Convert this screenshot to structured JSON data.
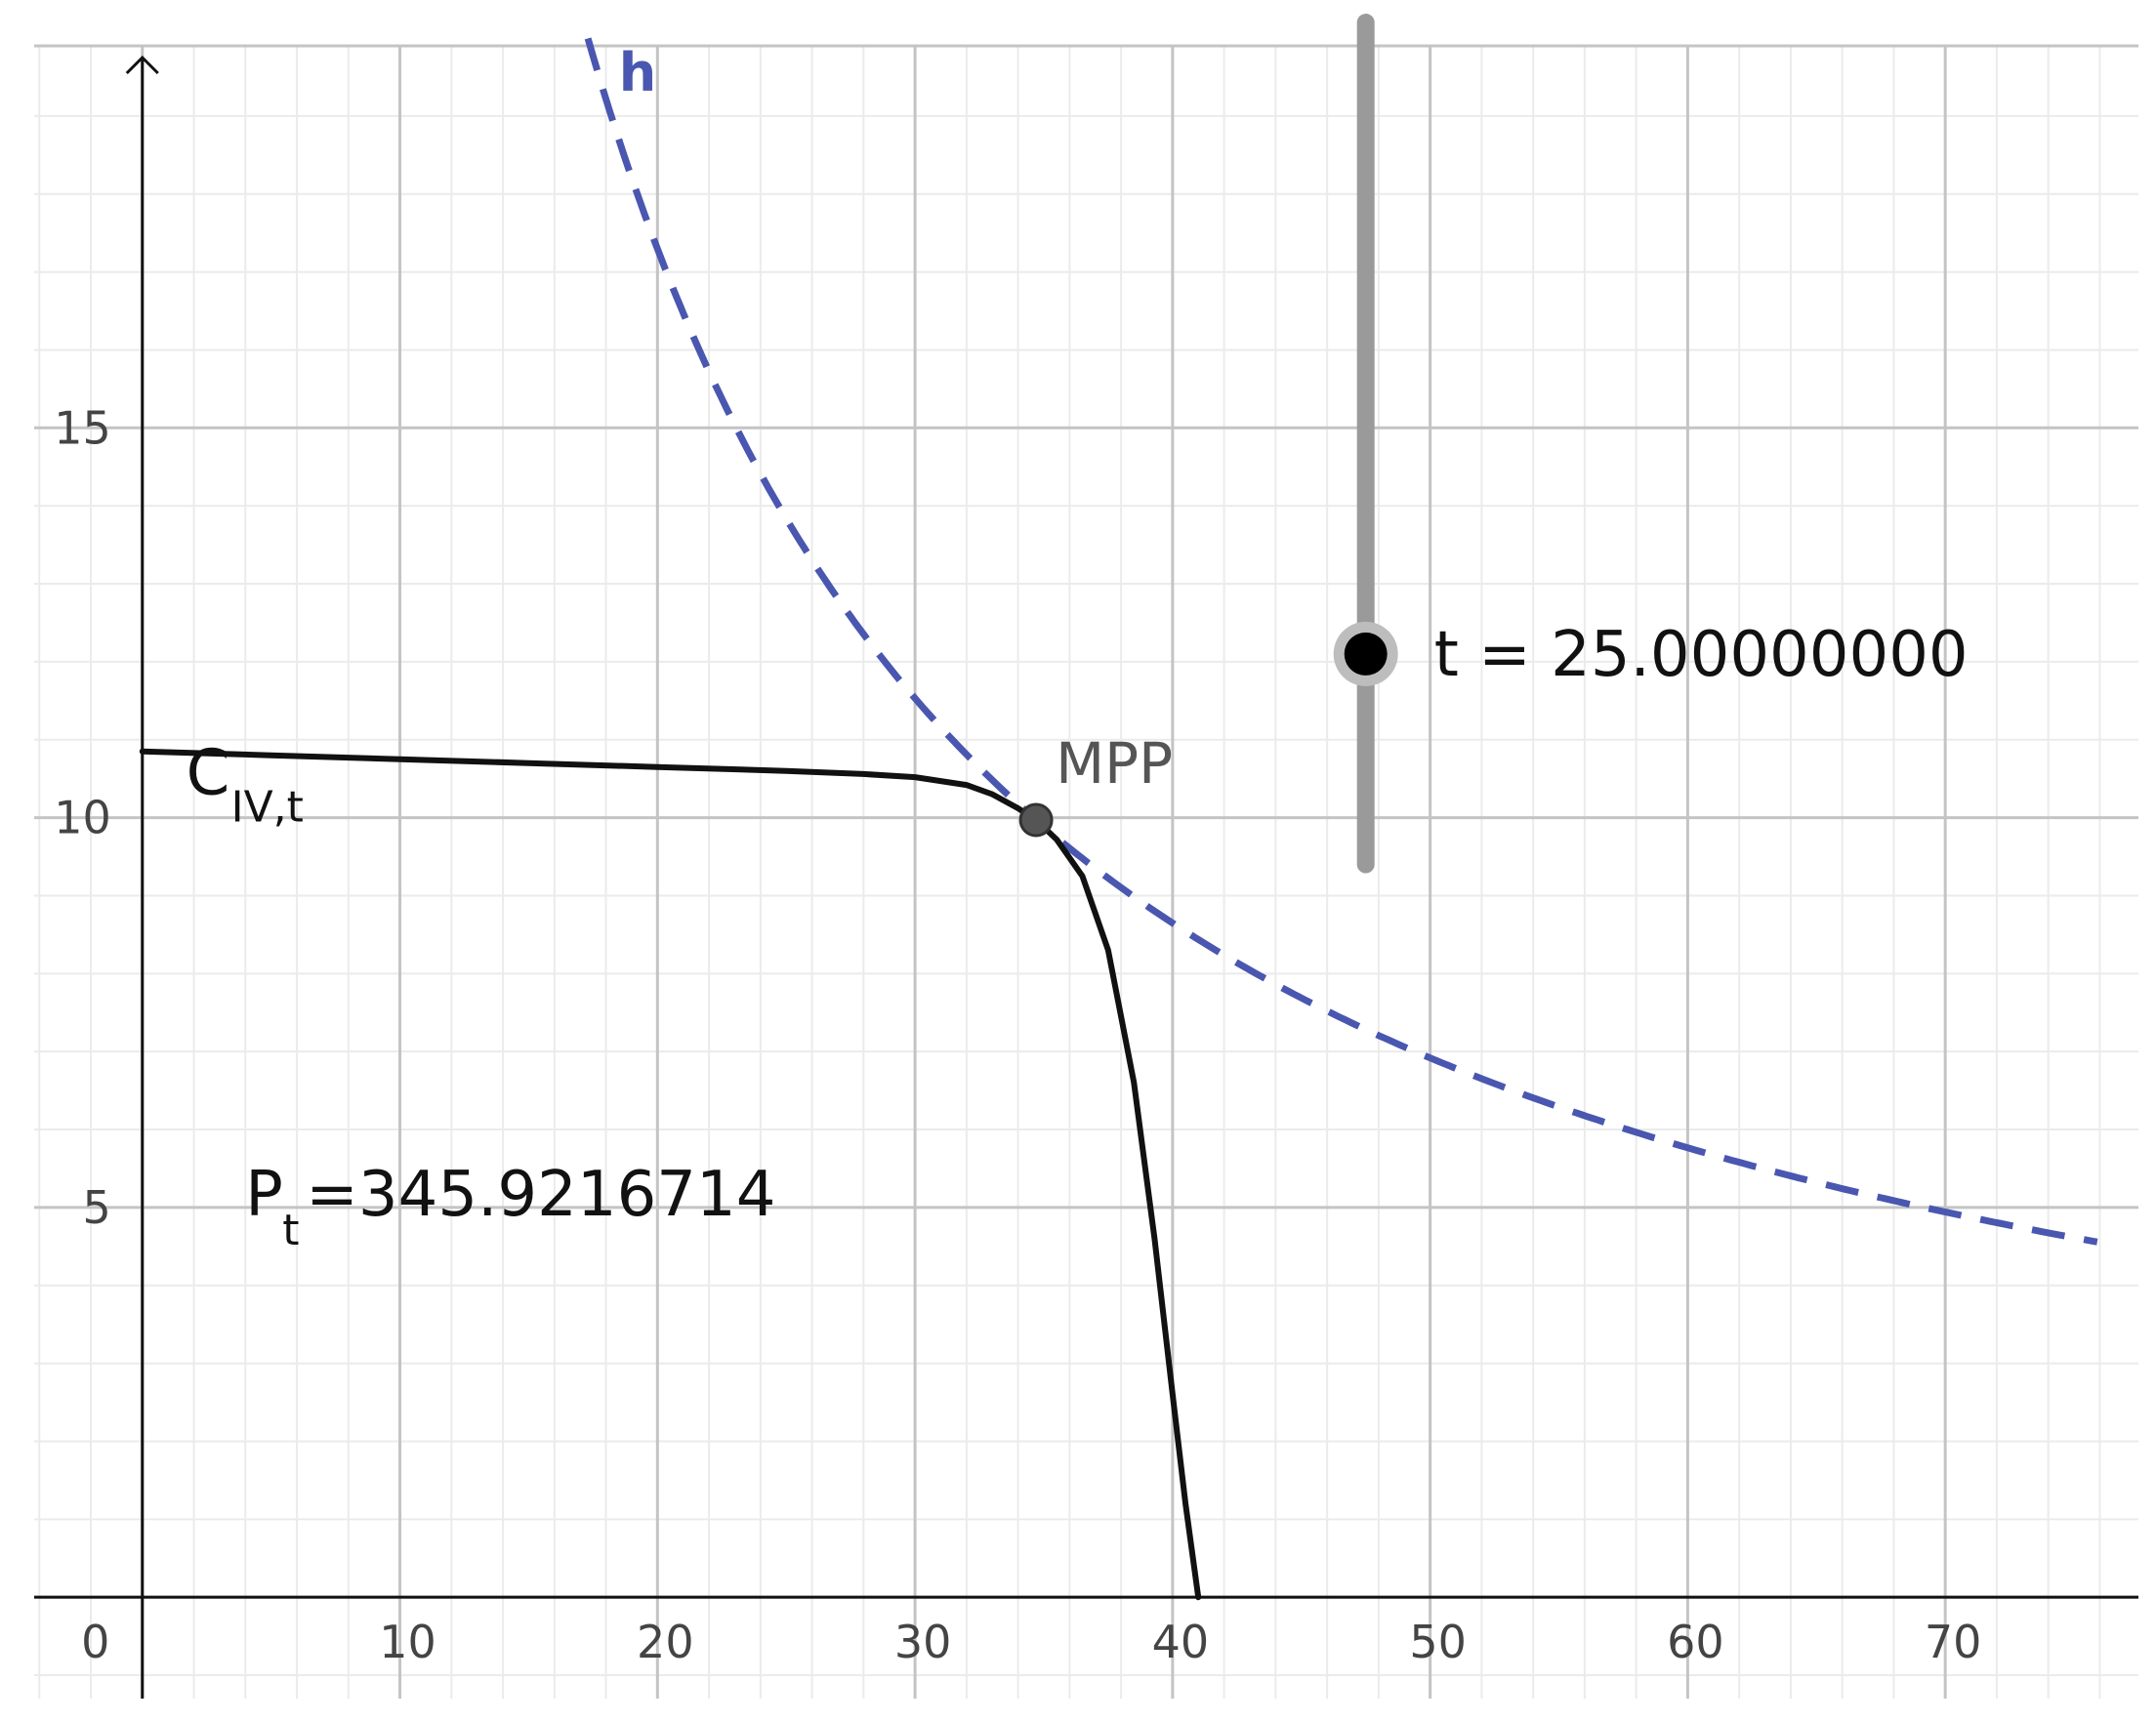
{
  "chart_data": {
    "type": "line",
    "title": "",
    "xlabel": "",
    "ylabel": "",
    "xlim": [
      -4.2,
      77.5
    ],
    "ylim": [
      -1.3,
      19.9
    ],
    "x_ticks": [
      "0",
      "10",
      "20",
      "30",
      "40",
      "50",
      "60",
      "70"
    ],
    "y_ticks": [
      "5",
      "10",
      "15"
    ],
    "grid": true,
    "series": [
      {
        "name": "C",
        "subscript": "IV,t",
        "style": "solid",
        "color": "#111111",
        "x": [
          0,
          5,
          10,
          15,
          20,
          25,
          28,
          30,
          32,
          33,
          34,
          34.7,
          35.5,
          36.5,
          37.5,
          38.5,
          39.3,
          40,
          40.5,
          41
        ],
        "y": [
          10.85,
          10.8,
          10.75,
          10.7,
          10.65,
          10.6,
          10.56,
          10.52,
          10.42,
          10.3,
          10.12,
          9.97,
          9.72,
          9.25,
          8.3,
          6.6,
          4.6,
          2.6,
          1.2,
          0
        ]
      },
      {
        "name": "h",
        "style": "dashed",
        "color": "#4a57b0",
        "formula": "y = 345.9216714 / x",
        "x_range": [
          17.3,
          76
        ]
      }
    ],
    "points": [
      {
        "label": "MPP",
        "x": 34.7,
        "y": 9.97
      }
    ],
    "slider": {
      "variable": "t",
      "value_text": "t = 25.00000000",
      "value": 25,
      "x": 47.5,
      "y_range": [
        9.4,
        20.2
      ],
      "knob_y": 12.1
    },
    "annotations": [
      {
        "main": "P",
        "sub": "t",
        "value": "=345.9216714",
        "x": 4,
        "y": 4.9
      }
    ]
  }
}
